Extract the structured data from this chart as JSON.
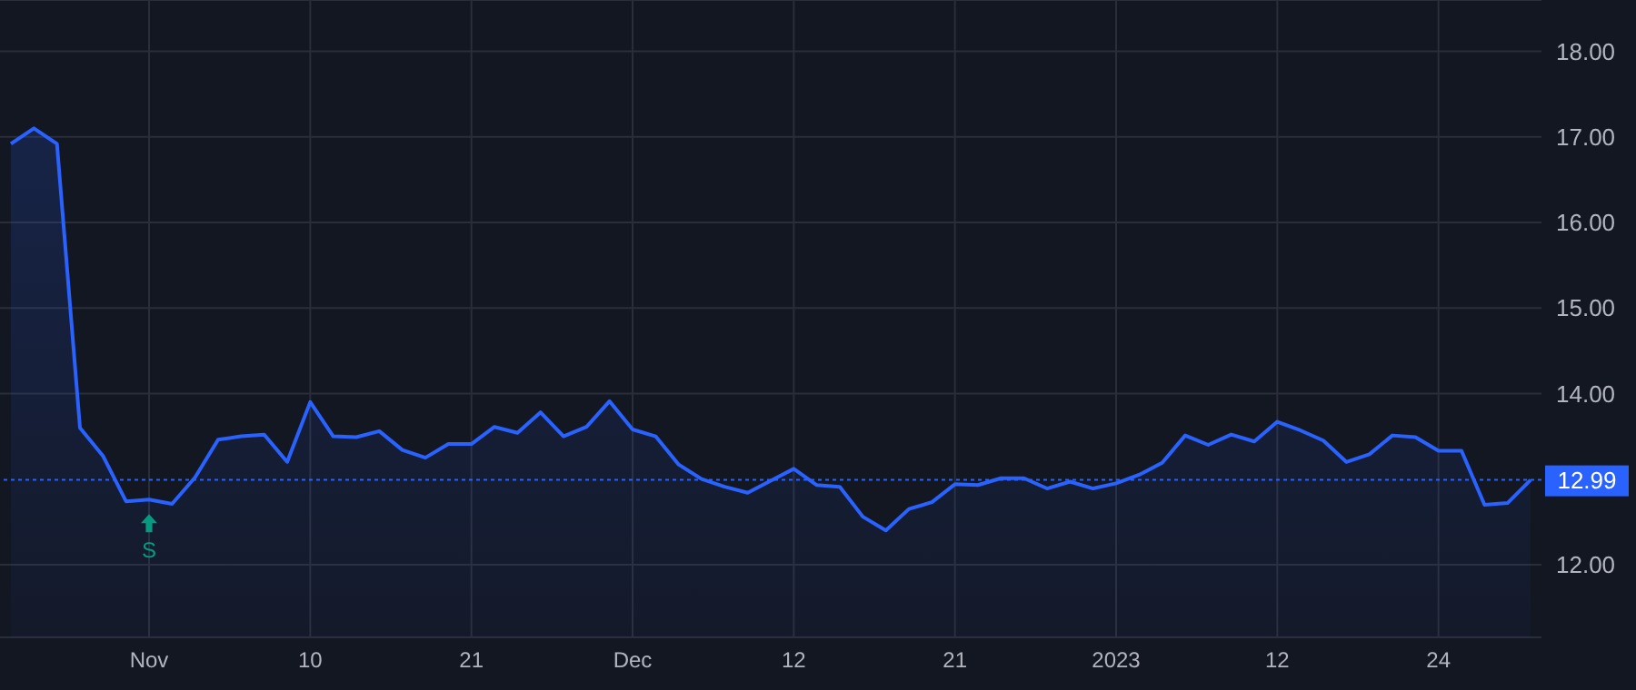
{
  "chart_data": {
    "type": "area",
    "categories": [
      null,
      null,
      null,
      null,
      null,
      null,
      "Nov",
      null,
      null,
      null,
      null,
      null,
      null,
      "10",
      null,
      null,
      null,
      null,
      null,
      null,
      "21",
      null,
      null,
      null,
      null,
      null,
      null,
      "Dec",
      null,
      null,
      null,
      null,
      null,
      null,
      "12",
      null,
      null,
      null,
      null,
      null,
      null,
      "21",
      null,
      null,
      null,
      null,
      null,
      null,
      "2023",
      null,
      null,
      null,
      null,
      null,
      null,
      "12",
      null,
      null,
      null,
      null,
      null,
      null,
      "24",
      null,
      null,
      null,
      null
    ],
    "series": [
      {
        "color": "#2962ff",
        "values": [
          16.92,
          17.1,
          16.92,
          13.6,
          13.27,
          12.74,
          12.76,
          12.71,
          13.02,
          13.46,
          13.5,
          13.52,
          13.2,
          13.9,
          13.5,
          13.49,
          13.56,
          13.34,
          13.25,
          13.41,
          13.41,
          13.61,
          13.54,
          13.78,
          13.5,
          13.61,
          13.91,
          13.58,
          13.5,
          13.17,
          13.0,
          12.91,
          12.84,
          12.98,
          13.12,
          12.93,
          12.91,
          12.56,
          12.4,
          12.65,
          12.73,
          12.94,
          12.93,
          13.01,
          13.01,
          12.89,
          12.97,
          12.89,
          12.95,
          13.05,
          13.19,
          13.51,
          13.4,
          13.52,
          13.44,
          13.67,
          13.57,
          13.45,
          13.2,
          13.29,
          13.51,
          13.49,
          13.33,
          13.33,
          12.7,
          12.72,
          12.99
        ]
      }
    ],
    "ylim": [
      11.15,
      18.6
    ],
    "yticks": [
      {
        "value": 12,
        "label": "12.00"
      },
      {
        "value": 14,
        "label": "14.00"
      },
      {
        "value": 15,
        "label": "15.00"
      },
      {
        "value": 16,
        "label": "16.00"
      },
      {
        "value": 17,
        "label": "17.00"
      },
      {
        "value": 18,
        "label": "18.00"
      }
    ],
    "grid": true,
    "ref_lines": [
      {
        "axis": "y",
        "value": 12.99,
        "label": "12.99",
        "color": "#2962ff",
        "line_style": "dotted"
      }
    ],
    "annotations": [
      {
        "text": "S",
        "x": "Nov",
        "y": 12.76
      }
    ]
  }
}
